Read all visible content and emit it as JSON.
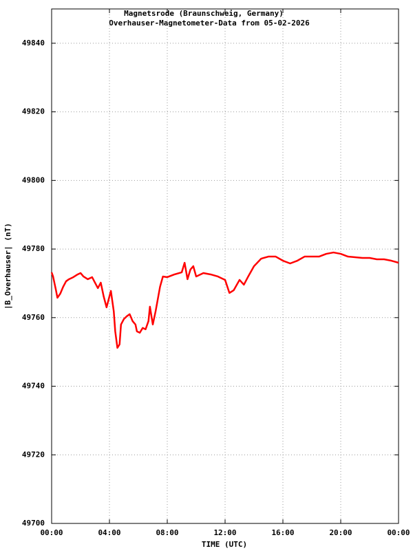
{
  "chart_data": {
    "type": "line",
    "title": "Magnetsrode (Braunschweig, Germany)",
    "subtitle": "Overhauser-Magnetometer-Data from 05-02-2026",
    "x_label": "TIME (UTC)",
    "y_label": "|B_Overhauser| (nT)",
    "x": [
      0.0,
      0.1,
      0.3,
      0.4,
      0.6,
      0.8,
      1.0,
      1.2,
      1.5,
      1.8,
      2.0,
      2.2,
      2.5,
      2.8,
      3.0,
      3.2,
      3.4,
      3.6,
      3.8,
      4.0,
      4.1,
      4.3,
      4.4,
      4.55,
      4.7,
      4.8,
      5.0,
      5.2,
      5.4,
      5.6,
      5.8,
      5.9,
      6.1,
      6.3,
      6.5,
      6.7,
      6.8,
      7.0,
      7.2,
      7.5,
      7.7,
      8.0,
      8.5,
      9.0,
      9.2,
      9.4,
      9.6,
      9.8,
      10.0,
      10.5,
      11.0,
      11.5,
      12.0,
      12.3,
      12.6,
      13.0,
      13.3,
      13.6,
      14.0,
      14.5,
      15.0,
      15.5,
      16.0,
      16.5,
      17.0,
      17.5,
      18.0,
      18.5,
      19.0,
      19.5,
      20.0,
      20.5,
      21.0,
      21.5,
      22.0,
      22.5,
      23.0,
      23.5,
      24.0
    ],
    "series": [
      {
        "name": "|B_Overhauser|",
        "color": "#ff0000",
        "values": [
          49773.2,
          49772,
          49768,
          49765.8,
          49767,
          49769,
          49770.6,
          49771.2,
          49771.8,
          49772.6,
          49773,
          49772,
          49771.2,
          49771.8,
          49770.2,
          49768.6,
          49770.2,
          49766.2,
          49763,
          49766.2,
          49767.8,
          49761.8,
          49756,
          49751.2,
          49752.2,
          49758,
          49759.6,
          49760.4,
          49761,
          49759,
          49758,
          49756,
          49755.6,
          49757,
          49756.6,
          49759,
          49763.2,
          49758,
          49762,
          49769,
          49772,
          49771.8,
          49772.6,
          49773.2,
          49776,
          49771.2,
          49774,
          49775,
          49772,
          49773,
          49772.6,
          49772,
          49771,
          49767.2,
          49768,
          49771,
          49769.6,
          49772,
          49775,
          49777.2,
          49777.8,
          49777.8,
          49776.6,
          49775.8,
          49776.6,
          49777.8,
          49777.8,
          49777.8,
          49778.6,
          49779,
          49778.6,
          49777.8,
          49777.6,
          49777.4,
          49777.4,
          49777,
          49777,
          49776.6,
          49776
        ]
      }
    ],
    "xlim": [
      0,
      24
    ],
    "xticks": [
      {
        "value": 0,
        "label": "00:00"
      },
      {
        "value": 4,
        "label": "04:00"
      },
      {
        "value": 8,
        "label": "08:00"
      },
      {
        "value": 12,
        "label": "12:00"
      },
      {
        "value": 16,
        "label": "16:00"
      },
      {
        "value": 20,
        "label": "20:00"
      },
      {
        "value": 24,
        "label": "00:00"
      }
    ],
    "ylim": [
      49700,
      49850
    ],
    "yticks": [
      49700,
      49720,
      49740,
      49760,
      49780,
      49800,
      49820,
      49840
    ],
    "grid": true
  }
}
